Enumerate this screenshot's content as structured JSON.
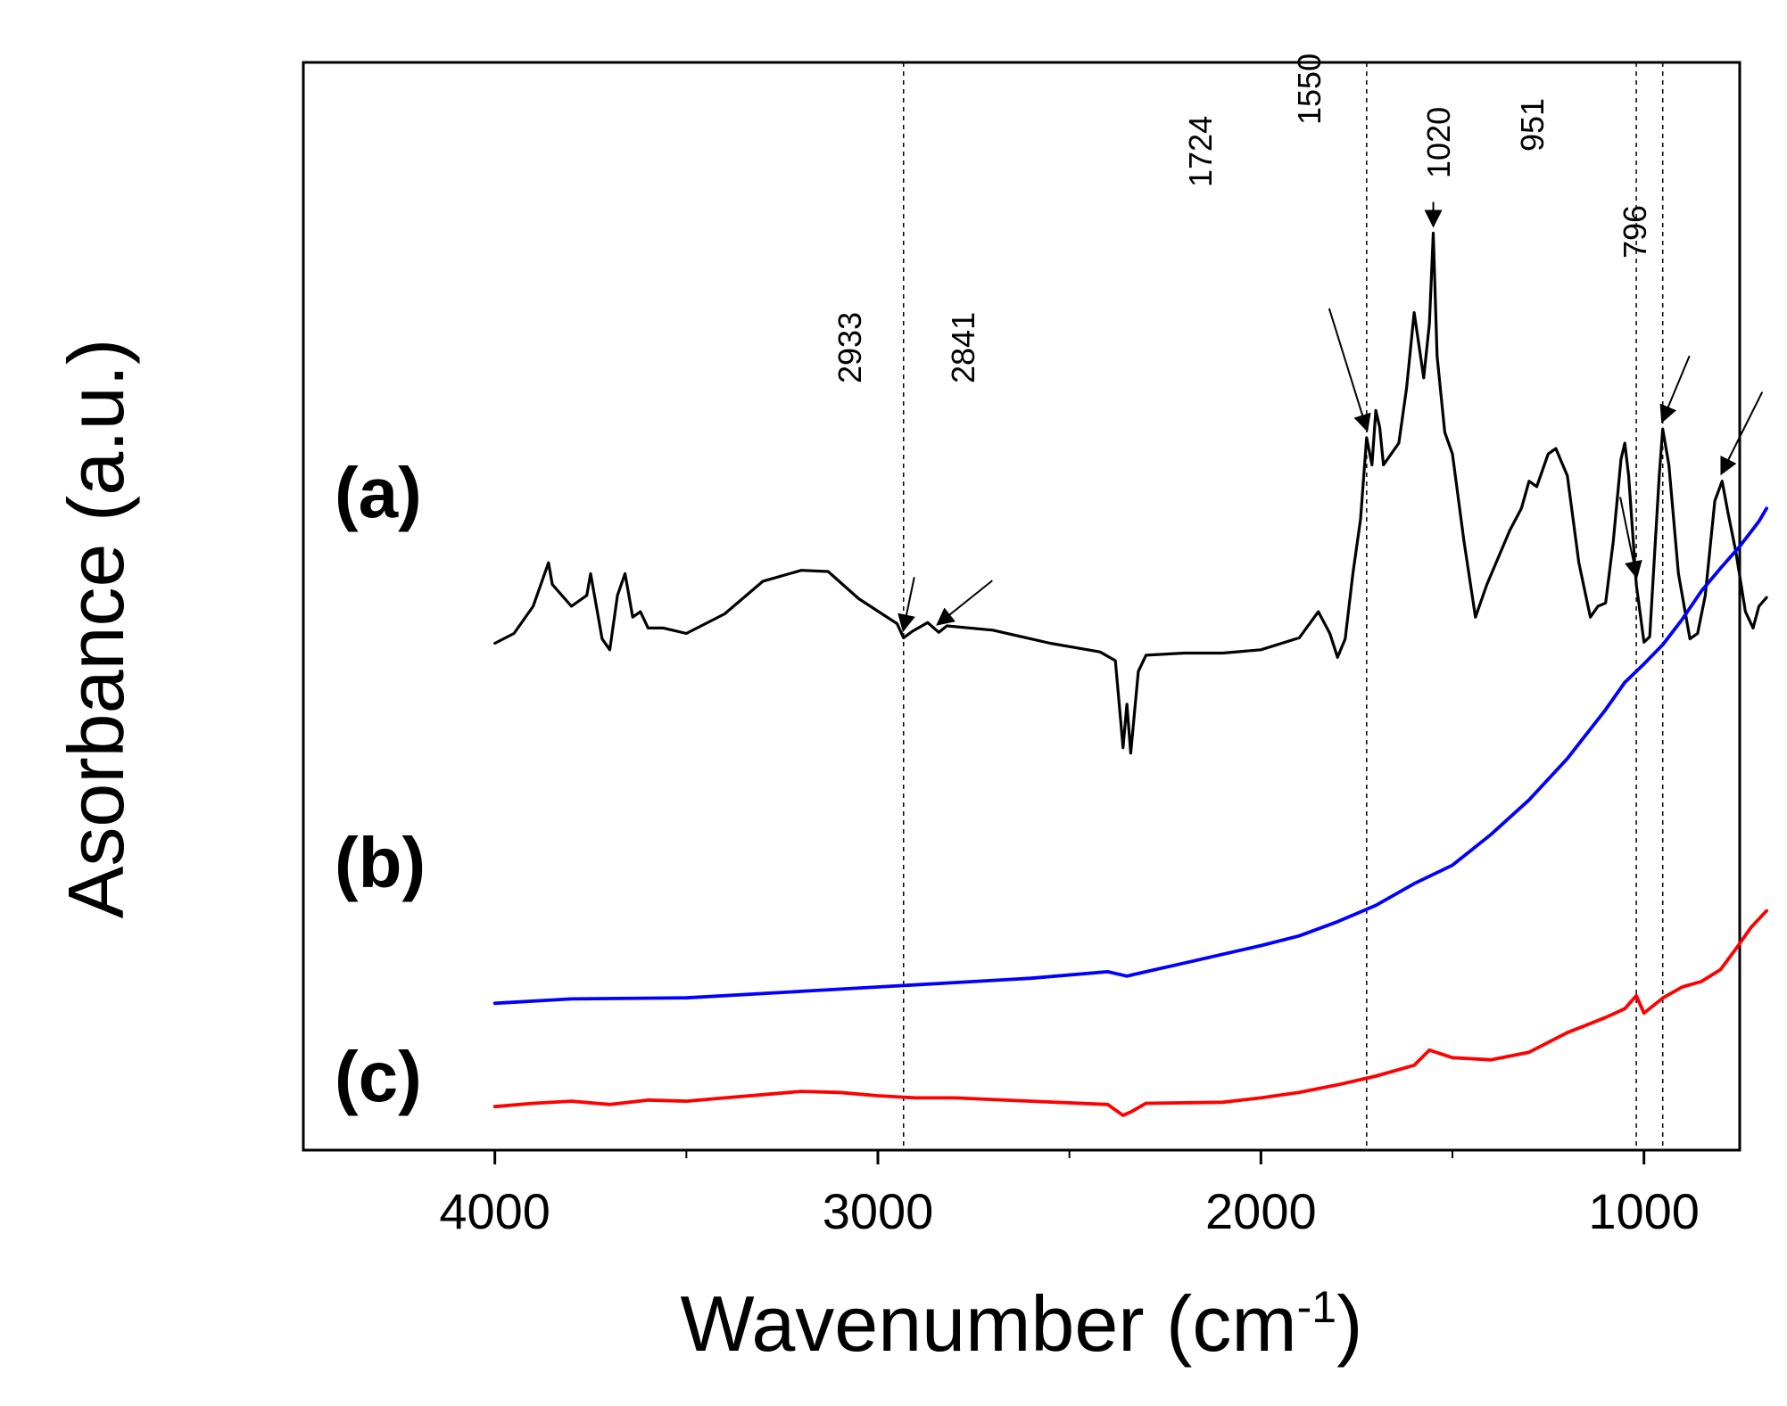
{
  "chart_data": {
    "type": "line",
    "title": "",
    "xlabel": "Wavenumber (cm-1)",
    "xlabel_main": "Wavenumber (cm",
    "xlabel_sup": "-1",
    "xlabel_close": ")",
    "ylabel": "Asorbance (a.u.)",
    "xlim": [
      4500,
      750
    ],
    "ylim": [
      0,
      1
    ],
    "x_reversed": true,
    "grid": false,
    "xticks": [
      4000,
      3000,
      2000,
      1000
    ],
    "xtick_labels": [
      "4000",
      "3000",
      "2000",
      "1000"
    ],
    "xticks_minor": [
      3500,
      2500,
      1500,
      500
    ],
    "reference_lines": [
      2933,
      1724,
      1020,
      951
    ],
    "series": [
      {
        "name": "(a)",
        "label": "(a)",
        "color": "#000000",
        "points": [
          [
            4000,
            0.466
          ],
          [
            3950,
            0.475
          ],
          [
            3900,
            0.5
          ],
          [
            3860,
            0.54
          ],
          [
            3850,
            0.52
          ],
          [
            3800,
            0.5
          ],
          [
            3760,
            0.51
          ],
          [
            3750,
            0.53
          ],
          [
            3720,
            0.47
          ],
          [
            3700,
            0.46
          ],
          [
            3680,
            0.51
          ],
          [
            3660,
            0.53
          ],
          [
            3640,
            0.49
          ],
          [
            3620,
            0.495
          ],
          [
            3600,
            0.48
          ],
          [
            3560,
            0.48
          ],
          [
            3500,
            0.475
          ],
          [
            3400,
            0.493
          ],
          [
            3300,
            0.523
          ],
          [
            3200,
            0.533
          ],
          [
            3130,
            0.532
          ],
          [
            3050,
            0.507
          ],
          [
            2950,
            0.484
          ],
          [
            2933,
            0.471
          ],
          [
            2910,
            0.477
          ],
          [
            2870,
            0.485
          ],
          [
            2841,
            0.476
          ],
          [
            2820,
            0.482
          ],
          [
            2700,
            0.478
          ],
          [
            2550,
            0.466
          ],
          [
            2420,
            0.458
          ],
          [
            2380,
            0.45
          ],
          [
            2360,
            0.37
          ],
          [
            2350,
            0.41
          ],
          [
            2340,
            0.365
          ],
          [
            2320,
            0.44
          ],
          [
            2300,
            0.455
          ],
          [
            2200,
            0.457
          ],
          [
            2100,
            0.457
          ],
          [
            2000,
            0.46
          ],
          [
            1900,
            0.471
          ],
          [
            1850,
            0.495
          ],
          [
            1820,
            0.475
          ],
          [
            1800,
            0.453
          ],
          [
            1780,
            0.47
          ],
          [
            1760,
            0.53
          ],
          [
            1740,
            0.58
          ],
          [
            1724,
            0.655
          ],
          [
            1710,
            0.63
          ],
          [
            1700,
            0.68
          ],
          [
            1690,
            0.665
          ],
          [
            1680,
            0.63
          ],
          [
            1660,
            0.64
          ],
          [
            1640,
            0.65
          ],
          [
            1620,
            0.7
          ],
          [
            1600,
            0.77
          ],
          [
            1575,
            0.71
          ],
          [
            1560,
            0.76
          ],
          [
            1550,
            0.843
          ],
          [
            1540,
            0.73
          ],
          [
            1520,
            0.66
          ],
          [
            1500,
            0.64
          ],
          [
            1470,
            0.56
          ],
          [
            1440,
            0.49
          ],
          [
            1410,
            0.52
          ],
          [
            1380,
            0.545
          ],
          [
            1350,
            0.57
          ],
          [
            1320,
            0.59
          ],
          [
            1300,
            0.615
          ],
          [
            1280,
            0.61
          ],
          [
            1250,
            0.64
          ],
          [
            1230,
            0.645
          ],
          [
            1200,
            0.62
          ],
          [
            1170,
            0.54
          ],
          [
            1140,
            0.49
          ],
          [
            1120,
            0.5
          ],
          [
            1100,
            0.503
          ],
          [
            1080,
            0.56
          ],
          [
            1060,
            0.635
          ],
          [
            1050,
            0.65
          ],
          [
            1040,
            0.62
          ],
          [
            1020,
            0.52
          ],
          [
            1000,
            0.467
          ],
          [
            985,
            0.472
          ],
          [
            960,
            0.62
          ],
          [
            951,
            0.663
          ],
          [
            935,
            0.63
          ],
          [
            910,
            0.53
          ],
          [
            880,
            0.47
          ],
          [
            860,
            0.475
          ],
          [
            840,
            0.51
          ],
          [
            815,
            0.597
          ],
          [
            796,
            0.615
          ],
          [
            780,
            0.585
          ],
          [
            760,
            0.55
          ],
          [
            735,
            0.495
          ],
          [
            715,
            0.48
          ],
          [
            700,
            0.5
          ],
          [
            680,
            0.508
          ]
        ]
      },
      {
        "name": "(b)",
        "label": "(b)",
        "color": "#0000ff",
        "points": [
          [
            4000,
            0.135
          ],
          [
            3800,
            0.139
          ],
          [
            3500,
            0.14
          ],
          [
            3200,
            0.146
          ],
          [
            3000,
            0.15
          ],
          [
            2800,
            0.154
          ],
          [
            2600,
            0.158
          ],
          [
            2400,
            0.164
          ],
          [
            2350,
            0.16
          ],
          [
            2300,
            0.164
          ],
          [
            2200,
            0.172
          ],
          [
            2000,
            0.188
          ],
          [
            1900,
            0.197
          ],
          [
            1800,
            0.21
          ],
          [
            1700,
            0.225
          ],
          [
            1600,
            0.245
          ],
          [
            1500,
            0.262
          ],
          [
            1400,
            0.29
          ],
          [
            1300,
            0.322
          ],
          [
            1200,
            0.36
          ],
          [
            1100,
            0.405
          ],
          [
            1050,
            0.43
          ],
          [
            1000,
            0.447
          ],
          [
            950,
            0.465
          ],
          [
            900,
            0.488
          ],
          [
            850,
            0.514
          ],
          [
            800,
            0.535
          ],
          [
            750,
            0.555
          ],
          [
            700,
            0.578
          ],
          [
            680,
            0.59
          ]
        ]
      },
      {
        "name": "(c)",
        "label": "(c)",
        "color": "#ff0000",
        "points": [
          [
            4000,
            0.04
          ],
          [
            3900,
            0.043
          ],
          [
            3800,
            0.045
          ],
          [
            3700,
            0.042
          ],
          [
            3600,
            0.046
          ],
          [
            3500,
            0.045
          ],
          [
            3400,
            0.048
          ],
          [
            3300,
            0.051
          ],
          [
            3200,
            0.054
          ],
          [
            3100,
            0.053
          ],
          [
            3000,
            0.05
          ],
          [
            2900,
            0.048
          ],
          [
            2800,
            0.048
          ],
          [
            2600,
            0.045
          ],
          [
            2400,
            0.042
          ],
          [
            2360,
            0.032
          ],
          [
            2340,
            0.035
          ],
          [
            2300,
            0.043
          ],
          [
            2100,
            0.044
          ],
          [
            2000,
            0.048
          ],
          [
            1900,
            0.053
          ],
          [
            1800,
            0.06
          ],
          [
            1700,
            0.068
          ],
          [
            1600,
            0.078
          ],
          [
            1560,
            0.092
          ],
          [
            1500,
            0.085
          ],
          [
            1400,
            0.083
          ],
          [
            1300,
            0.09
          ],
          [
            1200,
            0.108
          ],
          [
            1100,
            0.122
          ],
          [
            1050,
            0.13
          ],
          [
            1020,
            0.142
          ],
          [
            1000,
            0.126
          ],
          [
            950,
            0.14
          ],
          [
            900,
            0.15
          ],
          [
            850,
            0.155
          ],
          [
            800,
            0.166
          ],
          [
            760,
            0.185
          ],
          [
            720,
            0.205
          ],
          [
            680,
            0.22
          ]
        ]
      }
    ],
    "peak_annotations": [
      {
        "label": "2933",
        "wavenumber": 2933
      },
      {
        "label": "2841",
        "wavenumber": 2841
      },
      {
        "label": "1724",
        "wavenumber": 1724
      },
      {
        "label": "1550",
        "wavenumber": 1550
      },
      {
        "label": "1020",
        "wavenumber": 1020
      },
      {
        "label": "951",
        "wavenumber": 951
      },
      {
        "label": "796",
        "wavenumber": 796
      }
    ]
  }
}
